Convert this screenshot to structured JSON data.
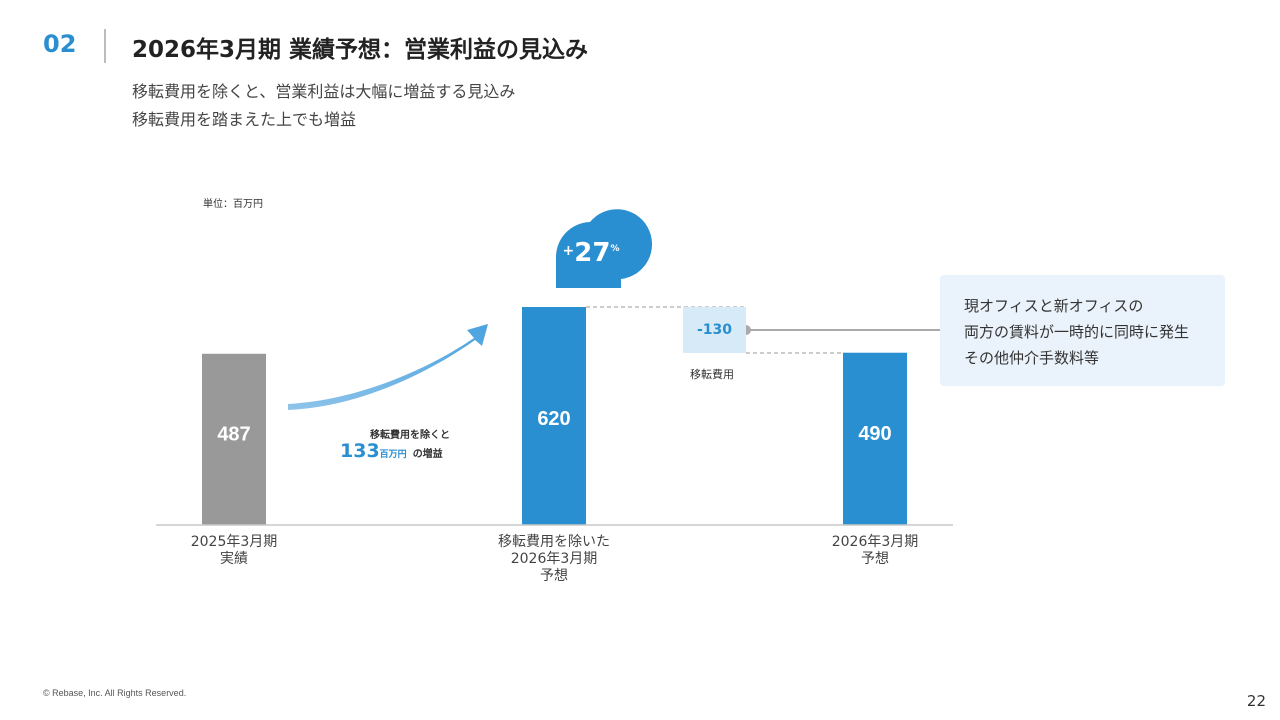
{
  "header": {
    "section_number": "02",
    "title": "2026年3月期 業績予想：営業利益の見込み",
    "subtitles": [
      "移転費用を除くと、営業利益は大幅に増益する見込み",
      "移転費用を踏まえた上でも増益"
    ]
  },
  "chart_data": {
    "type": "bar",
    "unit_label": "単位：百万円",
    "categories": [
      [
        "2025年3月期",
        "実績"
      ],
      [
        "移転費用を除いた",
        "2026年3月期",
        "予想"
      ],
      [
        "2026年3月期",
        "予想"
      ]
    ],
    "values": [
      487,
      620,
      490
    ],
    "value_labels": [
      "487",
      "620",
      "490"
    ],
    "colors": [
      "#999999",
      "#2a8fd0",
      "#2a8fd0"
    ],
    "growth_badge": {
      "sign": "+",
      "value": "27",
      "unit": "%"
    },
    "arrow_note": {
      "line1": "移転費用を除くと",
      "amount": "133",
      "amount_unit": "百万円",
      "suffix": "の増益"
    },
    "difference": {
      "value": "-130",
      "caption": "移転費用"
    }
  },
  "note_box": {
    "lines": [
      "現オフィスと新オフィスの",
      "両方の賃料が一時的に同時に発生",
      "その他仲介手数料等"
    ]
  },
  "footer": {
    "copyright": "© Rebase, Inc. All Rights Reserved.",
    "page_number": "22"
  },
  "colors": {
    "accent": "#2a8fd0",
    "actual_bar": "#999999",
    "note_bg": "#eaf3fb",
    "diff_bg": "#d6eaf8"
  }
}
